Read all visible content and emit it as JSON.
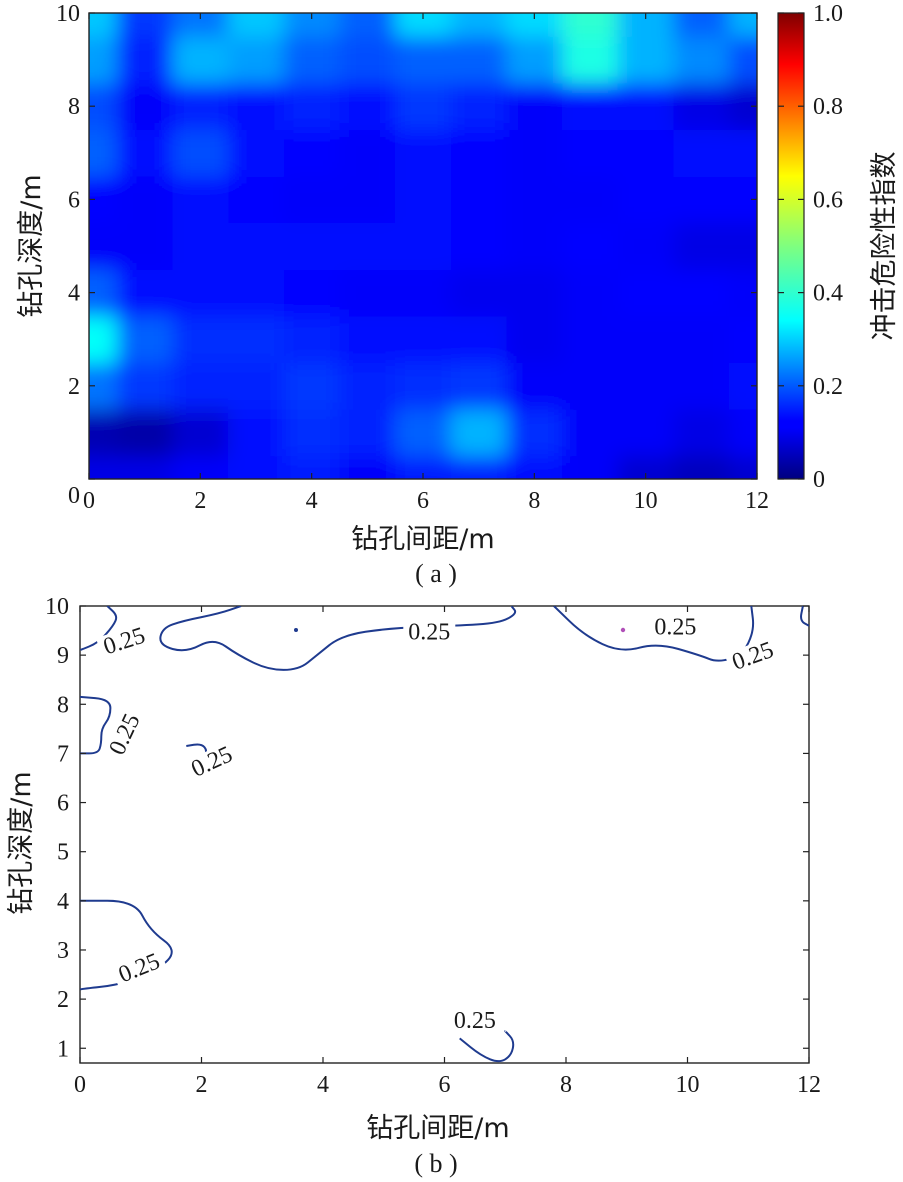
{
  "chart_data": [
    {
      "panel": "a",
      "type": "heatmap",
      "caption": "( a )",
      "xlabel": "钻孔间距/m",
      "ylabel": "钻孔深度/m",
      "colorbar_label": "冲击危险性指数",
      "xlim": [
        0,
        12
      ],
      "ylim": [
        0,
        10
      ],
      "x_ticks": [
        0,
        2,
        4,
        6,
        8,
        10,
        12
      ],
      "y_ticks": [
        0,
        2,
        4,
        6,
        8,
        10
      ],
      "colorbar_range": [
        0,
        1.0
      ],
      "colorbar_ticks": [
        "0",
        "0.2",
        "0.4",
        "0.6",
        "0.8",
        "1.0"
      ],
      "colormap": "jet",
      "grid": false,
      "x": [
        0,
        1,
        2,
        3,
        4,
        5,
        6,
        7,
        8,
        9,
        10,
        11,
        12
      ],
      "y": [
        0,
        1,
        2,
        3,
        4,
        5,
        6,
        7,
        8,
        9,
        10
      ],
      "z": [
        [
          0.1,
          0.1,
          0.12,
          0.14,
          0.15,
          0.12,
          0.15,
          0.16,
          0.14,
          0.12,
          0.08,
          0.06,
          0.08
        ],
        [
          0.05,
          0.04,
          0.08,
          0.14,
          0.17,
          0.16,
          0.22,
          0.3,
          0.17,
          0.12,
          0.12,
          0.1,
          0.12
        ],
        [
          0.24,
          0.18,
          0.16,
          0.16,
          0.18,
          0.16,
          0.17,
          0.18,
          0.12,
          0.12,
          0.12,
          0.12,
          0.14
        ],
        [
          0.38,
          0.22,
          0.17,
          0.17,
          0.16,
          0.14,
          0.14,
          0.14,
          0.11,
          0.12,
          0.12,
          0.12,
          0.13
        ],
        [
          0.22,
          0.14,
          0.14,
          0.14,
          0.13,
          0.12,
          0.12,
          0.11,
          0.11,
          0.12,
          0.13,
          0.13,
          0.12
        ],
        [
          0.12,
          0.12,
          0.14,
          0.14,
          0.14,
          0.14,
          0.14,
          0.13,
          0.12,
          0.13,
          0.12,
          0.1,
          0.1
        ],
        [
          0.13,
          0.12,
          0.14,
          0.13,
          0.12,
          0.12,
          0.14,
          0.13,
          0.12,
          0.12,
          0.13,
          0.13,
          0.13
        ],
        [
          0.22,
          0.14,
          0.2,
          0.14,
          0.13,
          0.12,
          0.14,
          0.13,
          0.12,
          0.13,
          0.13,
          0.14,
          0.14
        ],
        [
          0.2,
          0.12,
          0.16,
          0.14,
          0.16,
          0.14,
          0.18,
          0.16,
          0.12,
          0.14,
          0.14,
          0.1,
          0.08
        ],
        [
          0.28,
          0.16,
          0.3,
          0.28,
          0.22,
          0.2,
          0.22,
          0.22,
          0.28,
          0.4,
          0.3,
          0.26,
          0.2
        ],
        [
          0.32,
          0.18,
          0.24,
          0.32,
          0.26,
          0.22,
          0.34,
          0.3,
          0.34,
          0.42,
          0.3,
          0.22,
          0.3
        ]
      ]
    },
    {
      "panel": "b",
      "type": "contour",
      "caption": "( b )",
      "xlabel": "钻孔间距/m",
      "ylabel": "钻孔深度/m",
      "xlim": [
        0,
        12
      ],
      "ylim": [
        0.7,
        10
      ],
      "x_ticks": [
        0,
        2,
        4,
        6,
        8,
        10,
        12
      ],
      "y_ticks": [
        1,
        2,
        3,
        4,
        5,
        6,
        7,
        8,
        9,
        10
      ],
      "contour_level": 0.25,
      "contour_label": "0.25",
      "line_color": "#1f3b8f",
      "grid": false,
      "contours": [
        {
          "name": "top-left",
          "points": [
            [
              0.45,
              10.0
            ],
            [
              0.62,
              9.8
            ],
            [
              0.55,
              9.6
            ],
            [
              0.3,
              9.25
            ],
            [
              0.0,
              9.1
            ]
          ]
        },
        {
          "name": "top-middle",
          "points": [
            [
              2.65,
              10.0
            ],
            [
              2.3,
              9.85
            ],
            [
              1.7,
              9.7
            ],
            [
              1.35,
              9.55
            ],
            [
              1.3,
              9.2
            ],
            [
              1.75,
              9.05
            ],
            [
              2.2,
              9.35
            ],
            [
              2.6,
              9.0
            ],
            [
              3.1,
              8.7
            ],
            [
              3.6,
              8.7
            ],
            [
              3.9,
              9.0
            ],
            [
              4.3,
              9.4
            ],
            [
              5.1,
              9.55
            ],
            [
              6.2,
              9.6
            ],
            [
              6.9,
              9.65
            ],
            [
              7.2,
              9.85
            ],
            [
              7.1,
              10.0
            ]
          ]
        },
        {
          "name": "top-right",
          "points": [
            [
              7.8,
              10.0
            ],
            [
              8.3,
              9.4
            ],
            [
              8.9,
              9.05
            ],
            [
              9.5,
              9.25
            ],
            [
              10.2,
              9.0
            ],
            [
              10.5,
              8.85
            ],
            [
              10.9,
              9.0
            ],
            [
              11.1,
              9.5
            ],
            [
              11.05,
              10.0
            ]
          ]
        },
        {
          "name": "top-right-edge",
          "points": [
            [
              11.9,
              10.0
            ],
            [
              11.85,
              9.7
            ],
            [
              12.0,
              9.6
            ]
          ]
        },
        {
          "name": "left-upper",
          "points": [
            [
              0.0,
              8.15
            ],
            [
              0.5,
              8.1
            ],
            [
              0.5,
              7.75
            ],
            [
              0.35,
              7.5
            ],
            [
              0.35,
              7.2
            ],
            [
              0.3,
              7.0
            ],
            [
              0.0,
              7.0
            ]
          ]
        },
        {
          "name": "small-loop",
          "points": [
            [
              1.75,
              7.15
            ],
            [
              2.0,
              7.2
            ],
            [
              2.1,
              7.05
            ],
            [
              2.0,
              6.85
            ],
            [
              1.8,
              6.85
            ]
          ]
        },
        {
          "name": "left-lower",
          "points": [
            [
              0.0,
              4.0
            ],
            [
              0.9,
              4.0
            ],
            [
              1.15,
              3.4
            ],
            [
              1.6,
              3.0
            ],
            [
              1.3,
              2.6
            ],
            [
              0.7,
              2.3
            ],
            [
              0.0,
              2.2
            ]
          ]
        },
        {
          "name": "bottom",
          "points": [
            [
              6.25,
              1.2
            ],
            [
              6.6,
              0.85
            ],
            [
              6.9,
              0.7
            ],
            [
              7.1,
              0.85
            ],
            [
              7.15,
              1.15
            ],
            [
              7.0,
              1.35
            ]
          ]
        }
      ],
      "labels": [
        {
          "x": 0.75,
          "y": 9.2,
          "angle": -18
        },
        {
          "x": 5.75,
          "y": 9.38,
          "angle": 0
        },
        {
          "x": 9.8,
          "y": 9.48,
          "angle": 0
        },
        {
          "x": 11.1,
          "y": 8.9,
          "angle": -20
        },
        {
          "x": 0.8,
          "y": 7.35,
          "angle": -65
        },
        {
          "x": 2.2,
          "y": 6.75,
          "angle": -25
        },
        {
          "x": 1.0,
          "y": 2.55,
          "angle": -22
        },
        {
          "x": 6.5,
          "y": 1.47,
          "angle": 0
        }
      ]
    }
  ]
}
